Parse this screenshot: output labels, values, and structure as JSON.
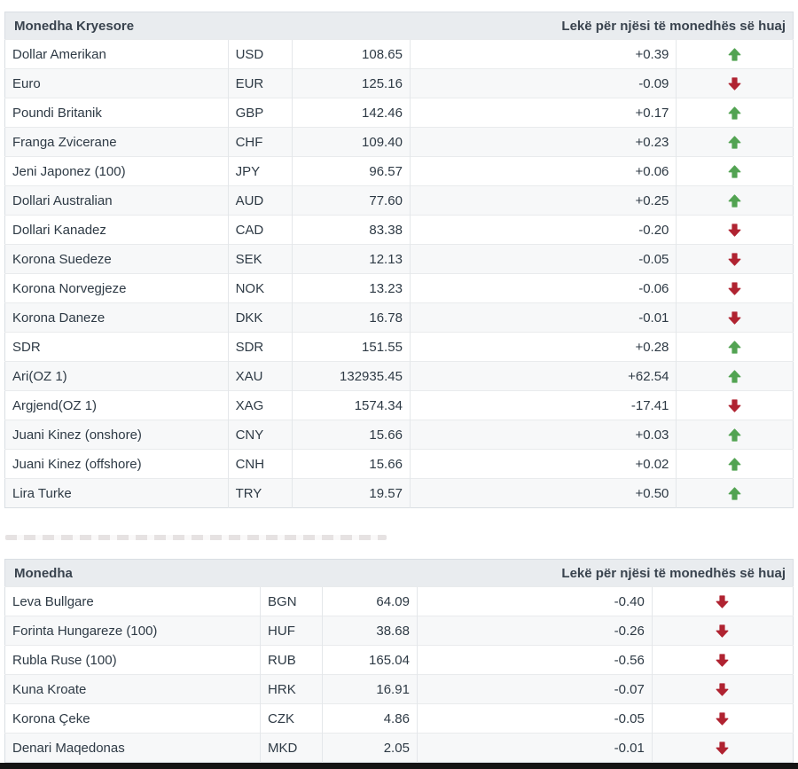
{
  "colors": {
    "arrow_up": "#52a352",
    "arrow_down": "#b02331",
    "header_bg": "#e9ecef",
    "header_text": "#39434e"
  },
  "tables": [
    {
      "title": "Monedha Kryesore",
      "unit_label": "Lekë për njësi të monedhës së huaj",
      "rows": [
        {
          "name": "Dollar Amerikan",
          "code": "USD",
          "rate": "108.65",
          "change": "+0.39",
          "direction": "up"
        },
        {
          "name": "Euro",
          "code": "EUR",
          "rate": "125.16",
          "change": "-0.09",
          "direction": "down"
        },
        {
          "name": "Poundi Britanik",
          "code": "GBP",
          "rate": "142.46",
          "change": "+0.17",
          "direction": "up"
        },
        {
          "name": "Franga Zvicerane",
          "code": "CHF",
          "rate": "109.40",
          "change": "+0.23",
          "direction": "up"
        },
        {
          "name": "Jeni Japonez (100)",
          "code": "JPY",
          "rate": "96.57",
          "change": "+0.06",
          "direction": "up"
        },
        {
          "name": "Dollari Australian",
          "code": "AUD",
          "rate": "77.60",
          "change": "+0.25",
          "direction": "up"
        },
        {
          "name": "Dollari Kanadez",
          "code": "CAD",
          "rate": "83.38",
          "change": "-0.20",
          "direction": "down"
        },
        {
          "name": "Korona Suedeze",
          "code": "SEK",
          "rate": "12.13",
          "change": "-0.05",
          "direction": "down"
        },
        {
          "name": "Korona Norvegjeze",
          "code": "NOK",
          "rate": "13.23",
          "change": "-0.06",
          "direction": "down"
        },
        {
          "name": "Korona Daneze",
          "code": "DKK",
          "rate": "16.78",
          "change": "-0.01",
          "direction": "down"
        },
        {
          "name": "SDR",
          "code": "SDR",
          "rate": "151.55",
          "change": "+0.28",
          "direction": "up"
        },
        {
          "name": "Ari(OZ 1)",
          "code": "XAU",
          "rate": "132935.45",
          "change": "+62.54",
          "direction": "up"
        },
        {
          "name": "Argjend(OZ 1)",
          "code": "XAG",
          "rate": "1574.34",
          "change": "-17.41",
          "direction": "down"
        },
        {
          "name": "Juani Kinez (onshore)",
          "code": "CNY",
          "rate": "15.66",
          "change": "+0.03",
          "direction": "up"
        },
        {
          "name": "Juani Kinez (offshore)",
          "code": "CNH",
          "rate": "15.66",
          "change": "+0.02",
          "direction": "up"
        },
        {
          "name": "Lira Turke",
          "code": "TRY",
          "rate": "19.57",
          "change": "+0.50",
          "direction": "up"
        }
      ]
    },
    {
      "title": "Monedha",
      "unit_label": "Lekë për njësi të monedhës së huaj",
      "rows": [
        {
          "name": "Leva Bullgare",
          "code": "BGN",
          "rate": "64.09",
          "change": "-0.40",
          "direction": "down"
        },
        {
          "name": "Forinta Hungareze (100)",
          "code": "HUF",
          "rate": "38.68",
          "change": "-0.26",
          "direction": "down"
        },
        {
          "name": "Rubla Ruse (100)",
          "code": "RUB",
          "rate": "165.04",
          "change": "-0.56",
          "direction": "down"
        },
        {
          "name": "Kuna Kroate",
          "code": "HRK",
          "rate": "16.91",
          "change": "-0.07",
          "direction": "down"
        },
        {
          "name": "Korona Çeke",
          "code": "CZK",
          "rate": "4.86",
          "change": "-0.05",
          "direction": "down"
        },
        {
          "name": "Denari Maqedonas",
          "code": "MKD",
          "rate": "2.05",
          "change": "-0.01",
          "direction": "down"
        }
      ]
    }
  ]
}
